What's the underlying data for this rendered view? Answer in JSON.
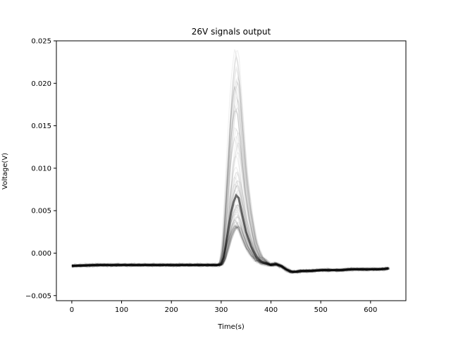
{
  "chart_data": {
    "type": "line",
    "title": "26V signals output",
    "xlabel": "Time(s)",
    "ylabel": "Voltage(V)",
    "xlim": [
      -31,
      671
    ],
    "ylim": [
      -0.0056,
      0.025
    ],
    "xticks": [
      0,
      100,
      200,
      300,
      400,
      500,
      600
    ],
    "yticks": [
      -0.005,
      0.0,
      0.005,
      0.01,
      0.015,
      0.02,
      0.025
    ],
    "xtick_labels": [
      "0",
      "100",
      "200",
      "300",
      "400",
      "500",
      "600"
    ],
    "ytick_labels": [
      "−0.005",
      "0.000",
      "0.005",
      "0.010",
      "0.015",
      "0.020",
      "0.025"
    ],
    "grid": false,
    "legend": "none",
    "line_color": "#000000",
    "overlay": "many semi-transparent overlapping traces",
    "series": [
      {
        "x": [
          0,
          50,
          100,
          150,
          200,
          250,
          295,
          300,
          305,
          310,
          315,
          320,
          325,
          330,
          335,
          340,
          345,
          350,
          360,
          370,
          380,
          390,
          400,
          410,
          420,
          430,
          440,
          450,
          460,
          480,
          500,
          520,
          540,
          560,
          580,
          600,
          620,
          638
        ],
        "values": [
          -0.0015,
          -0.0014,
          -0.0014,
          -0.0014,
          -0.0014,
          -0.0014,
          -0.0014,
          -0.0013,
          -0.0005,
          0.0012,
          0.003,
          0.0048,
          0.006,
          0.0068,
          0.0065,
          0.0052,
          0.0038,
          0.0025,
          0.0008,
          -0.0004,
          -0.001,
          -0.0012,
          -0.0014,
          -0.0013,
          -0.0015,
          -0.0019,
          -0.0022,
          -0.0022,
          -0.0021,
          -0.0021,
          -0.002,
          -0.002,
          -0.002,
          -0.0019,
          -0.0019,
          -0.0019,
          -0.0019,
          -0.0018
        ]
      }
    ]
  }
}
